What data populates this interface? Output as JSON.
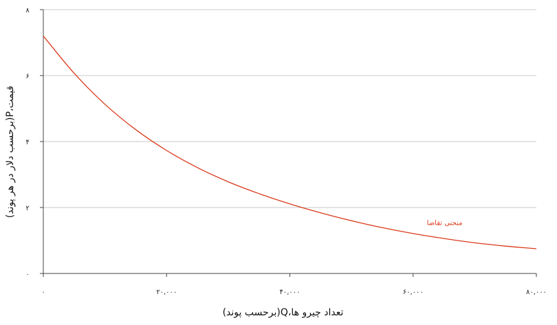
{
  "chart_data": {
    "type": "line",
    "title": "",
    "xlabel": "(برحسب پوند)Q،تعداد چیرو ها",
    "ylabel": "(برحسب دلار در هر پوند)P،قیمت",
    "xlim": [
      0,
      80000
    ],
    "ylim": [
      0,
      8
    ],
    "x_ticks": [
      0,
      20000,
      40000,
      60000,
      80000
    ],
    "x_tick_labels": [
      "۰",
      "۲۰,۰۰۰",
      "۴۰,۰۰۰",
      "۶۰,۰۰۰",
      "۸۰,۰۰۰"
    ],
    "y_ticks": [
      0,
      2,
      4,
      6,
      8
    ],
    "y_tick_labels": [
      "۰",
      "۲",
      "۴",
      "۶",
      "۸"
    ],
    "grid": true,
    "series": [
      {
        "name": "منحنی تقاضا",
        "color": "#d9391b",
        "x": [
          0,
          5000,
          10000,
          15000,
          20000,
          25000,
          30000,
          35000,
          40000,
          45000,
          50000,
          55000,
          60000,
          65000,
          70000,
          75000,
          80000
        ],
        "y": [
          7.2,
          6.07,
          5.13,
          4.36,
          3.73,
          3.21,
          2.78,
          2.42,
          2.11,
          1.84,
          1.6,
          1.39,
          1.21,
          1.06,
          0.93,
          0.83,
          0.75
        ]
      }
    ]
  }
}
